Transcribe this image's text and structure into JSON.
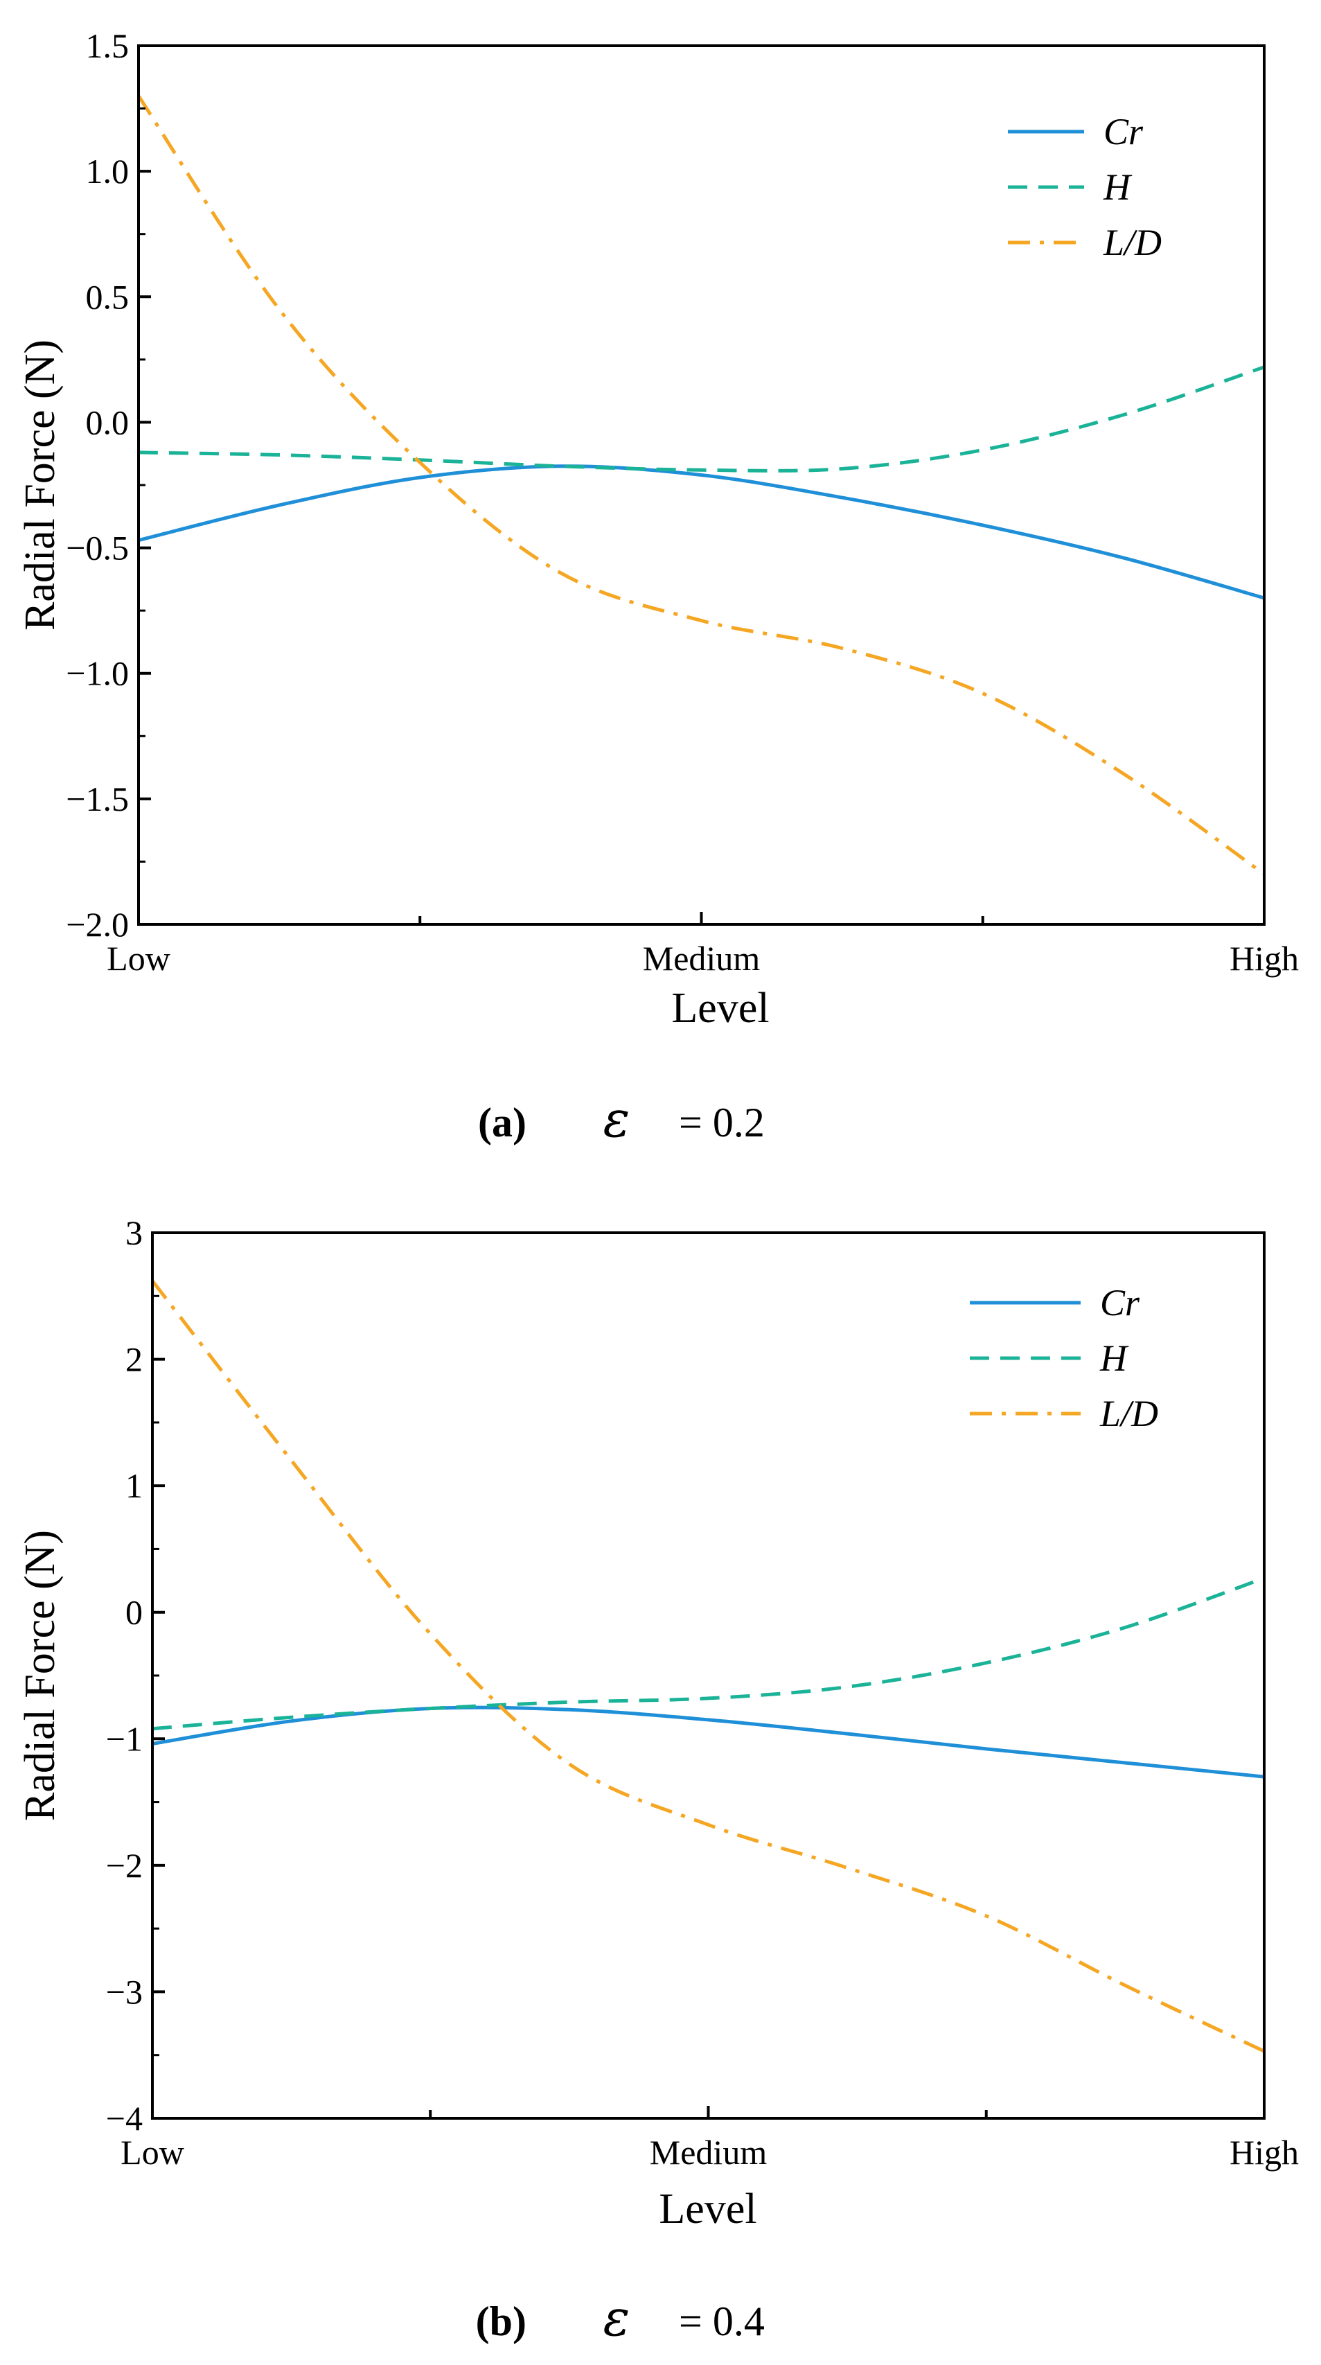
{
  "colors": {
    "Cr": "#1f8fd8",
    "H": "#1bb398",
    "L/D": "#f5a623",
    "axis": "#000000"
  },
  "chart_data": [
    {
      "type": "line",
      "panel_label": "(a)",
      "caption_symbol": "ε",
      "caption_value": "= 0.2",
      "xlabel": "Level",
      "ylabel": "Radial Force (N)",
      "categories": [
        "Low",
        "Medium",
        "High"
      ],
      "x": [
        0,
        0.125,
        0.25,
        0.375,
        0.5,
        0.625,
        0.75,
        0.875,
        1
      ],
      "ylim": [
        -2.0,
        1.5
      ],
      "yticks": [
        -2.0,
        -1.5,
        -1.0,
        -0.5,
        0.0,
        0.5,
        1.0,
        1.5
      ],
      "ytick_labels": [
        "−2.0",
        "−1.5",
        "−1.0",
        "−0.5",
        "0.0",
        "0.5",
        "1.0",
        "1.5"
      ],
      "legend_position": "top-right",
      "series": [
        {
          "name": "Cr",
          "style": "solid",
          "values": [
            -0.47,
            -0.33,
            -0.22,
            -0.175,
            -0.21,
            -0.3,
            -0.41,
            -0.54,
            -0.7
          ]
        },
        {
          "name": "H",
          "style": "dashed",
          "values": [
            -0.12,
            -0.13,
            -0.15,
            -0.175,
            -0.19,
            -0.185,
            -0.11,
            0.03,
            0.22
          ]
        },
        {
          "name": "L/D",
          "style": "dashdot",
          "values": [
            1.3,
            0.45,
            -0.16,
            -0.6,
            -0.79,
            -0.9,
            -1.08,
            -1.4,
            -1.8
          ]
        }
      ]
    },
    {
      "type": "line",
      "panel_label": "(b)",
      "caption_symbol": "ε",
      "caption_value": "= 0.4",
      "xlabel": "Level",
      "ylabel": "Radial Force (N)",
      "categories": [
        "Low",
        "Medium",
        "High"
      ],
      "x": [
        0,
        0.125,
        0.25,
        0.375,
        0.5,
        0.625,
        0.75,
        0.875,
        1
      ],
      "ylim": [
        -4,
        3
      ],
      "yticks": [
        -4,
        -3,
        -2,
        -1,
        0,
        1,
        2,
        3
      ],
      "ytick_labels": [
        "−4",
        "−3",
        "−2",
        "−1",
        "0",
        "1",
        "2",
        "3"
      ],
      "legend_position": "top-right",
      "series": [
        {
          "name": "Cr",
          "style": "solid",
          "values": [
            -1.04,
            -0.86,
            -0.76,
            -0.77,
            -0.85,
            -0.96,
            -1.08,
            -1.19,
            -1.3
          ]
        },
        {
          "name": "H",
          "style": "dashed",
          "values": [
            -0.92,
            -0.83,
            -0.76,
            -0.71,
            -0.68,
            -0.59,
            -0.4,
            -0.12,
            0.27
          ]
        },
        {
          "name": "L/D",
          "style": "dashdot",
          "values": [
            2.62,
            1.2,
            -0.17,
            -1.2,
            -1.68,
            -2.02,
            -2.4,
            -2.95,
            -3.47
          ]
        }
      ]
    }
  ]
}
